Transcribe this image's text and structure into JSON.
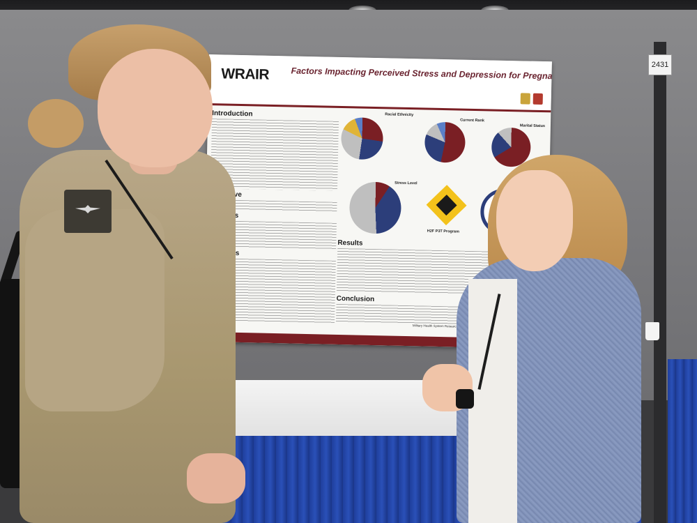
{
  "booth": {
    "number": "2431"
  },
  "poster": {
    "logo": "WRAIR",
    "title": "Factors Impacting Perceived Stress and Depression for Pregnant Soldiers",
    "sections": [
      {
        "heading": "Introduction"
      },
      {
        "heading": "Objective"
      },
      {
        "heading": "Methods"
      },
      {
        "heading": "Materials"
      }
    ],
    "right_sections": [
      {
        "heading": "Results"
      },
      {
        "heading": "Conclusion"
      }
    ],
    "chart_labels": {
      "race": "Racial Ethnicity",
      "rank": "Current Rank",
      "marital": "Marital Status",
      "stress": "Stress Level",
      "program": "H2F P3T Program"
    },
    "footer": "Military Health System Research Symposium | MHSRS August 2023"
  },
  "colors": {
    "poster_accent": "#7a1f24",
    "title_color": "#6a2430",
    "table_skirt": "#1f3f9c"
  }
}
